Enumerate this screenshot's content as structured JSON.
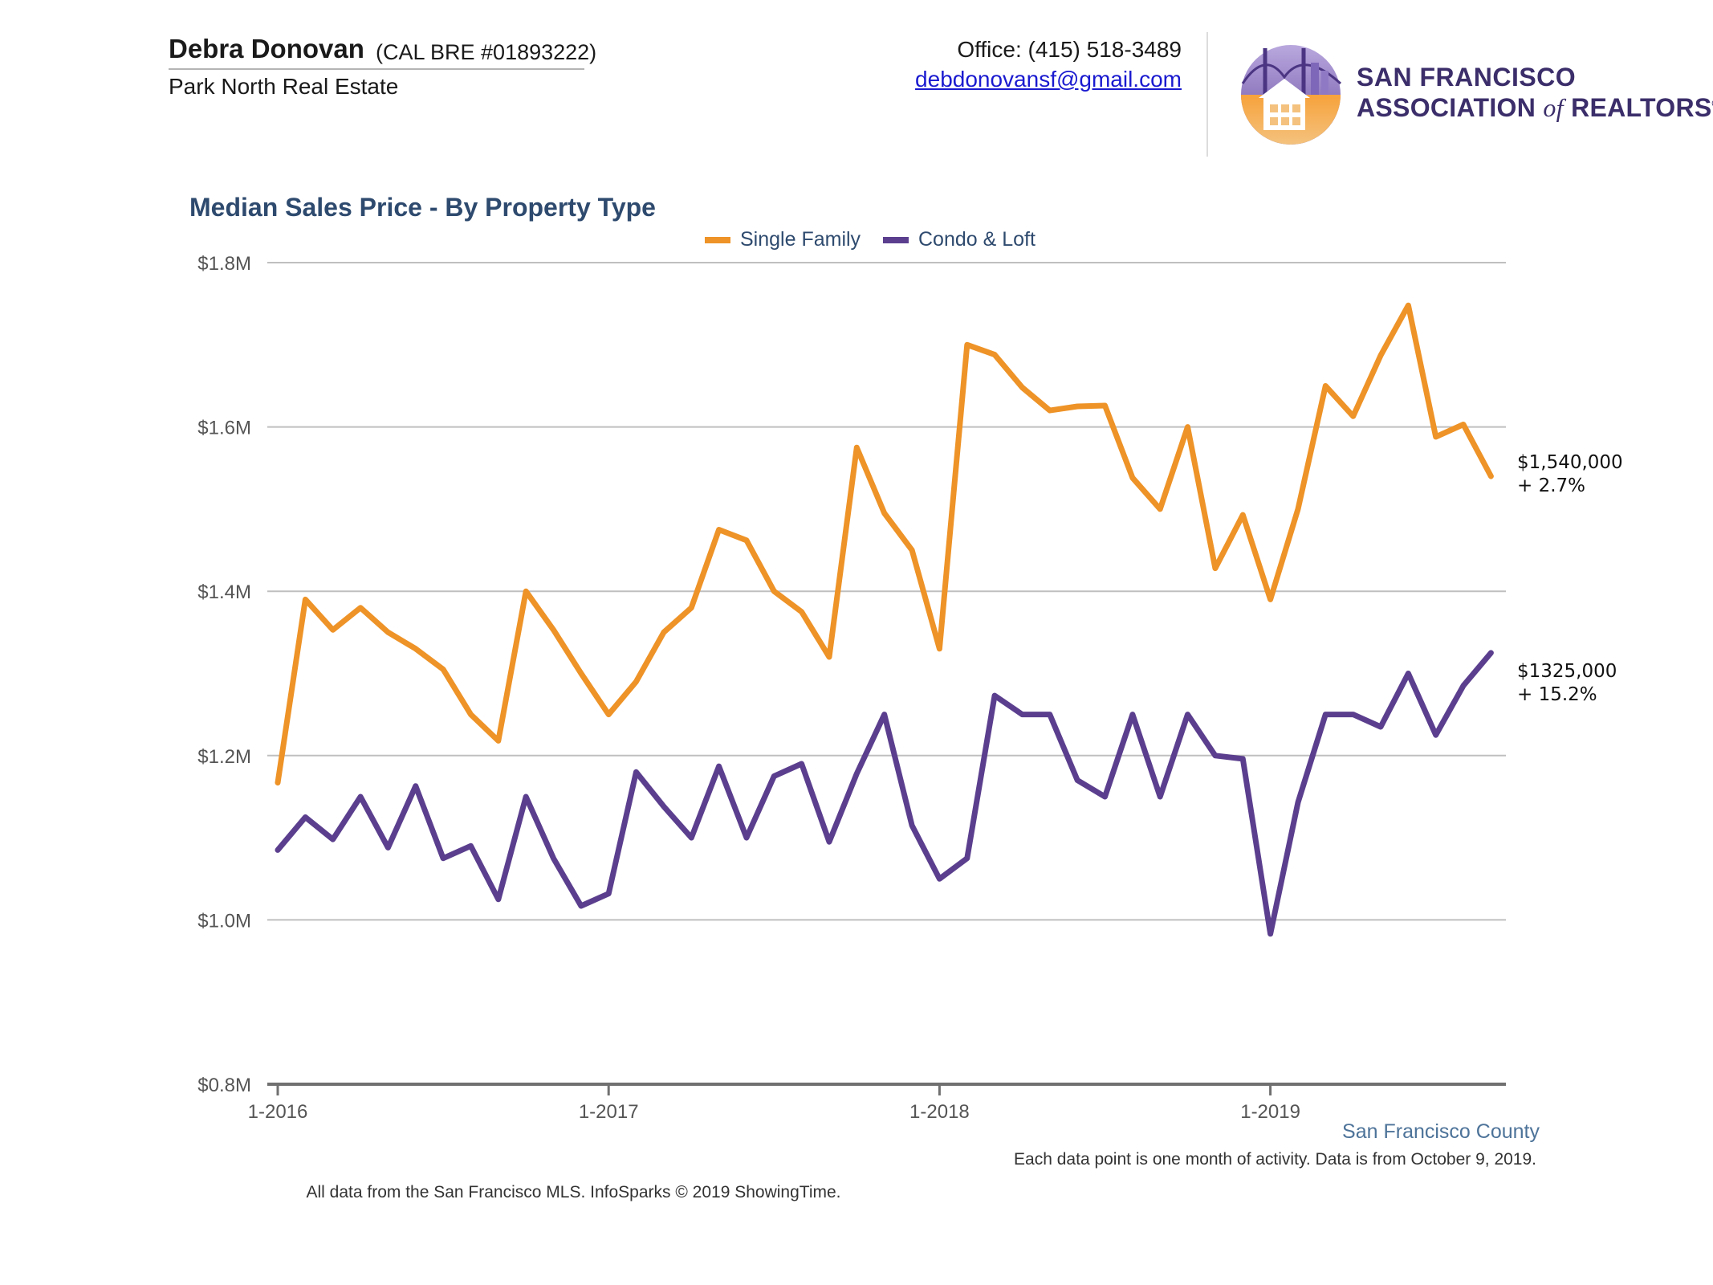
{
  "header": {
    "agent_name": "Debra Donovan",
    "agent_license": "(CAL BRE #01893222)",
    "agent_company": "Park North Real Estate",
    "office_phone": "Office: (415) 518-3489",
    "email": "debdonovansf@gmail.com",
    "logo_line1": "SAN FRANCISCO",
    "logo_line2_a": "ASSOCIATION",
    "logo_line2_of": "of",
    "logo_line2_b": "REALTORS",
    "logo_registered": "®"
  },
  "footer": {
    "county": "San Francisco County",
    "note": "Each data point is one month of activity. Data is from October 9, 2019.",
    "source": "All data from the San Francisco MLS. InfoSparks © 2019 ShowingTime."
  },
  "chart_data": {
    "type": "line",
    "title": "Median Sales Price - By Property Type",
    "xlabel": "",
    "ylabel": "",
    "x_ticks": [
      "1-2016",
      "1-2017",
      "1-2018",
      "1-2019"
    ],
    "y_ticks": [
      "$1.8M",
      "$1.6M",
      "$1.4M",
      "$1.2M",
      "$1.0M",
      "$0.8M"
    ],
    "y_tick_values": [
      1800000,
      1600000,
      1400000,
      1200000,
      1000000,
      800000
    ],
    "ylim": [
      800000,
      1800000
    ],
    "x_start": "2016-01",
    "grid": true,
    "legend_position": "top-center",
    "colors": {
      "single_family": "#ee9327",
      "condo_loft": "#5b3f8e",
      "grid": "#bfbfbf",
      "axis": "#707070"
    },
    "series": [
      {
        "name": "Single Family",
        "values": [
          1167000,
          1390000,
          1353000,
          1380000,
          1350000,
          1330000,
          1305000,
          1250000,
          1218000,
          1400000,
          1353000,
          1300000,
          1250000,
          1290000,
          1350000,
          1380000,
          1475000,
          1462000,
          1400000,
          1375000,
          1320000,
          1575000,
          1495000,
          1450000,
          1330000,
          1700000,
          1688000,
          1648000,
          1620000,
          1625000,
          1626000,
          1538000,
          1500000,
          1600000,
          1428000,
          1493000,
          1390000,
          1500000,
          1650000,
          1613000,
          1687000,
          1748000,
          1588000,
          1603000,
          1540000
        ],
        "end_label": "$1,540,000",
        "end_change": "+ 2.7%"
      },
      {
        "name": "Condo & Loft",
        "values": [
          1085000,
          1125000,
          1098000,
          1150000,
          1088000,
          1163000,
          1075000,
          1090000,
          1025000,
          1150000,
          1075000,
          1017000,
          1032000,
          1180000,
          1138000,
          1100000,
          1187000,
          1100000,
          1175000,
          1190000,
          1095000,
          1178000,
          1250000,
          1115000,
          1050000,
          1075000,
          1273000,
          1250000,
          1250000,
          1170000,
          1150000,
          1250000,
          1150000,
          1250000,
          1200000,
          1196000,
          983000,
          1143000,
          1250000,
          1250000,
          1235000,
          1300000,
          1225000,
          1285000,
          1325000
        ],
        "end_label": "$1325,000",
        "end_change": "+ 15.2%"
      }
    ]
  }
}
